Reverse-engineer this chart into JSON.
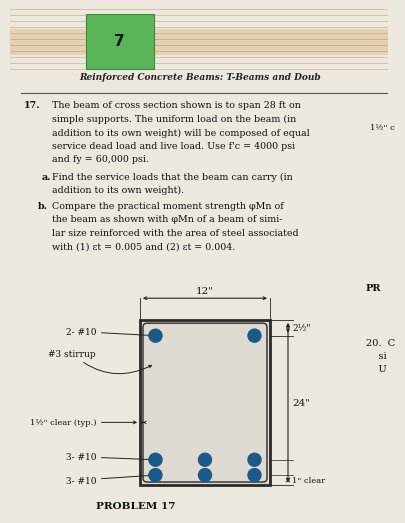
{
  "page_bg": "#ede8de",
  "wood_bg_top": "#b8813a",
  "wood_bg_mid": "#c8924a",
  "header_text": "Reinforced Concrete Beams: T-Beams and Doub",
  "problem_num": "17.",
  "problem_text_lines": [
    "The beam of cross section shown is to span 28 ft on",
    "simple supports. The uniform load on the beam (in",
    "addition to its own weight) will be composed of equal",
    "service dead load and live load. Use f'c = 4000 psi",
    "and fy = 60,000 psi."
  ],
  "part_a_bold": "a.",
  "part_a_text": "Find the service loads that the beam can carry (in",
  "part_a2_text": "addition to its own weight).",
  "part_b_bold": "b.",
  "part_b_text": "Compare the practical moment strength φMn of",
  "part_b2_text": "the beam as shown with φMn of a beam of simi-",
  "part_b3_text": "lar size reinforced with the area of steel associated",
  "part_b4_text": "with (1) εt = 0.005 and (2) εt = 0.004.",
  "right_note": "1½\" c",
  "right_note2": "20.  C",
  "right_note3": "    si",
  "right_note4": "    U",
  "pr_label": "PR",
  "beam_width_label": "12\"",
  "beam_height_label": "24\"",
  "top_cover_label": "2½\"",
  "side_clear_label": "1½\" clear (typ.)",
  "bot_clear_label": "1\" clear",
  "top_bar_label": "2- #10",
  "stirrup_label": "#3 stirrup",
  "bot_bar1_label": "3- #10",
  "bot_bar2_label": "3- #10",
  "problem_label": "PROBLEM 17",
  "beam_color": "#dedad2",
  "beam_border": "#2a2a2a",
  "bar_color": "#1a5a8a"
}
